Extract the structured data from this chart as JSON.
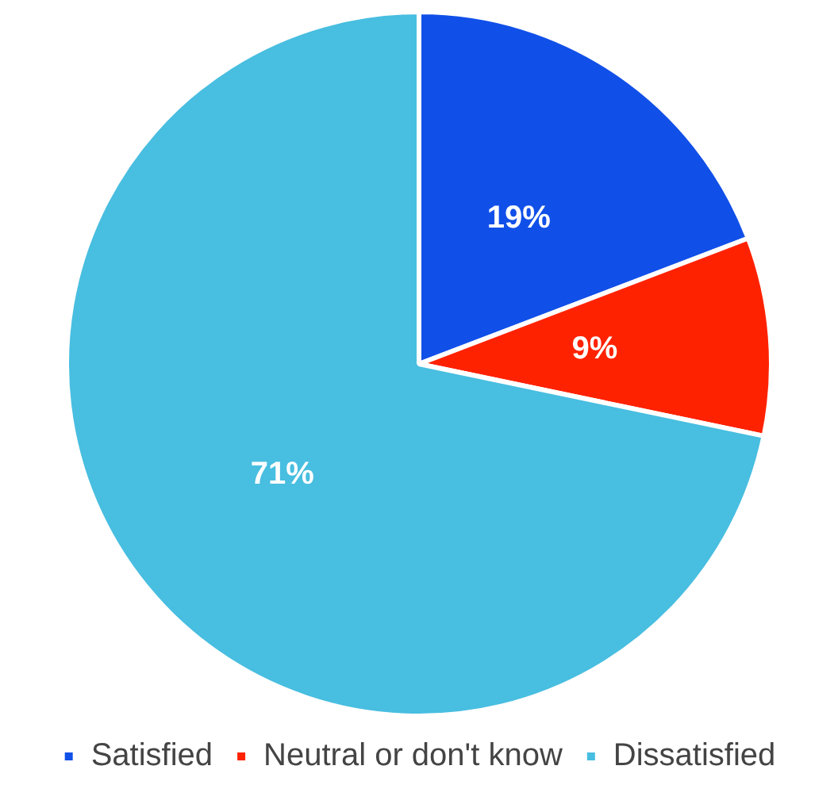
{
  "chart_data": {
    "type": "pie",
    "categories": [
      "Satisfied",
      "Neutral or don't know",
      "Dissatisfied"
    ],
    "values": [
      19,
      9,
      71
    ],
    "value_labels": [
      "19%",
      "9%",
      "71%"
    ],
    "colors": [
      "#1150e8",
      "#ff2200",
      "#48bee0"
    ],
    "legend": "bottom"
  }
}
